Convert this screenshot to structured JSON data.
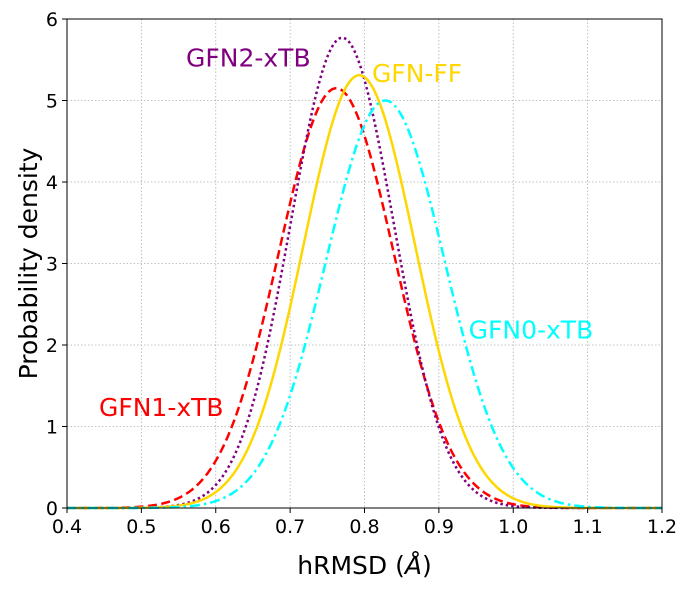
{
  "chart_data": {
    "type": "line",
    "xlabel": "hRMSD (",
    "xlabel_unit": "Å",
    "xlabel_close": ")",
    "ylabel": "Probability density",
    "xlim": [
      0.4,
      1.2
    ],
    "ylim": [
      0,
      6
    ],
    "xticks": [
      "0.4",
      "0.5",
      "0.6",
      "0.7",
      "0.8",
      "0.9",
      "1.0",
      "1.1",
      "1.2"
    ],
    "yticks": [
      "0",
      "1",
      "2",
      "3",
      "4",
      "5",
      "6"
    ],
    "grid": true,
    "series": [
      {
        "name": "GFN1-xTB",
        "color": "#ff0000",
        "style": "dashed",
        "mean": 0.762,
        "peak": 5.15,
        "sigma": 0.0775
      },
      {
        "name": "GFN2-xTB",
        "color": "#800080",
        "style": "dotted",
        "mean": 0.77,
        "peak": 5.77,
        "sigma": 0.0692
      },
      {
        "name": "GFN-FF",
        "color": "#ffd700",
        "style": "solid",
        "mean": 0.793,
        "peak": 5.31,
        "sigma": 0.0751
      },
      {
        "name": "GFN0-xTB",
        "color": "#00ffff",
        "style": "dashdot",
        "mean": 0.828,
        "peak": 5.0,
        "sigma": 0.0798
      }
    ],
    "annotations": [
      {
        "text": "GFN2-xTB",
        "color": "#800080",
        "x": 0.56,
        "y": 5.42
      },
      {
        "text": "GFN-FF",
        "color": "#ffd700",
        "x": 0.81,
        "y": 5.23
      },
      {
        "text": "GFN0-xTB",
        "color": "#00ffff",
        "x": 0.94,
        "y": 2.08
      },
      {
        "text": "GFN1-xTB",
        "color": "#ff0000",
        "x": 0.443,
        "y": 1.13
      }
    ]
  }
}
